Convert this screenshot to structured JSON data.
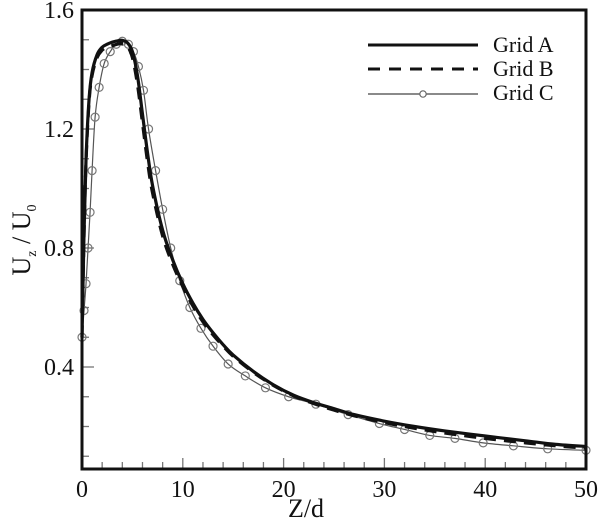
{
  "chart_data": {
    "type": "line",
    "title": "",
    "xlabel": "Z/d",
    "ylabel": "U_z / U_0",
    "ylabel_parts": {
      "main1": "U",
      "sub1": "z",
      "sep": " / ",
      "main2": "U",
      "sub2": "0"
    },
    "xlim": [
      0,
      50
    ],
    "ylim": [
      0.057,
      1.6
    ],
    "x_ticks": [
      0,
      10,
      20,
      30,
      40,
      50
    ],
    "x_tick_labels": [
      "0",
      "10",
      "20",
      "30",
      "40",
      "50"
    ],
    "x_minor_step": 2,
    "y_ticks": [
      0.4,
      0.8,
      1.2,
      1.6
    ],
    "y_tick_labels": [
      "0.4",
      "0.8",
      "1.2",
      "1.6"
    ],
    "y_minor_step": 0.1,
    "grid": false,
    "legend_position": "upper right",
    "series": [
      {
        "name": "Grid A",
        "style": "solid-thick",
        "x": [
          0,
          0.2,
          0.4,
          0.7,
          1.0,
          1.5,
          2.0,
          2.5,
          3.0,
          3.5,
          4.0,
          4.5,
          5.0,
          5.5,
          6.0,
          6.5,
          7.0,
          8.0,
          9.0,
          10,
          11,
          12,
          13,
          14,
          15,
          17,
          19,
          21,
          23,
          25,
          27,
          30,
          33,
          36,
          40,
          44,
          47,
          50
        ],
        "values": [
          0.5,
          0.85,
          1.1,
          1.3,
          1.39,
          1.45,
          1.475,
          1.485,
          1.492,
          1.496,
          1.498,
          1.49,
          1.46,
          1.38,
          1.25,
          1.12,
          1.01,
          0.86,
          0.76,
          0.68,
          0.615,
          0.56,
          0.515,
          0.475,
          0.44,
          0.385,
          0.34,
          0.305,
          0.28,
          0.26,
          0.24,
          0.218,
          0.2,
          0.185,
          0.168,
          0.152,
          0.14,
          0.133
        ]
      },
      {
        "name": "Grid B",
        "style": "dashed-thick",
        "x": [
          0,
          0.2,
          0.4,
          0.7,
          1.0,
          1.5,
          2.0,
          2.5,
          3.0,
          3.5,
          4.0,
          4.5,
          5.0,
          5.5,
          6.0,
          6.5,
          7.0,
          8.0,
          9.0,
          10,
          11,
          12,
          13,
          14,
          15,
          17,
          19,
          21,
          23,
          25,
          27,
          30,
          33,
          36,
          40,
          44,
          47,
          50
        ],
        "values": [
          0.5,
          0.84,
          1.09,
          1.29,
          1.38,
          1.44,
          1.465,
          1.475,
          1.48,
          1.485,
          1.487,
          1.478,
          1.44,
          1.35,
          1.22,
          1.09,
          0.985,
          0.84,
          0.745,
          0.67,
          0.605,
          0.552,
          0.508,
          0.47,
          0.436,
          0.382,
          0.338,
          0.303,
          0.277,
          0.255,
          0.236,
          0.213,
          0.194,
          0.178,
          0.16,
          0.145,
          0.135,
          0.127
        ]
      },
      {
        "name": "Grid C",
        "style": "solid-thin-circles",
        "x": [
          0,
          0.2,
          0.4,
          0.6,
          0.8,
          1.0,
          1.3,
          1.7,
          2.2,
          2.8,
          3.4,
          4.0,
          4.6,
          5.1,
          5.6,
          6.1,
          6.6,
          7.3,
          8.0,
          8.8,
          9.7,
          10.7,
          11.8,
          13.0,
          14.5,
          16.2,
          18.2,
          20.5,
          23.2,
          26.4,
          29.5,
          32.0,
          34.5,
          37.0,
          39.8,
          42.8,
          46.2,
          50
        ],
        "values": [
          0.5,
          0.59,
          0.68,
          0.8,
          0.92,
          1.06,
          1.24,
          1.34,
          1.42,
          1.46,
          1.485,
          1.495,
          1.485,
          1.46,
          1.41,
          1.33,
          1.2,
          1.06,
          0.93,
          0.8,
          0.69,
          0.6,
          0.53,
          0.47,
          0.41,
          0.37,
          0.33,
          0.3,
          0.275,
          0.24,
          0.21,
          0.19,
          0.17,
          0.16,
          0.145,
          0.135,
          0.125,
          0.12
        ]
      }
    ],
    "legend": [
      {
        "label": "Grid A",
        "style": "solid-thick"
      },
      {
        "label": "Grid B",
        "style": "dashed-thick"
      },
      {
        "label": "Grid C",
        "style": "solid-thin-circles"
      }
    ]
  }
}
